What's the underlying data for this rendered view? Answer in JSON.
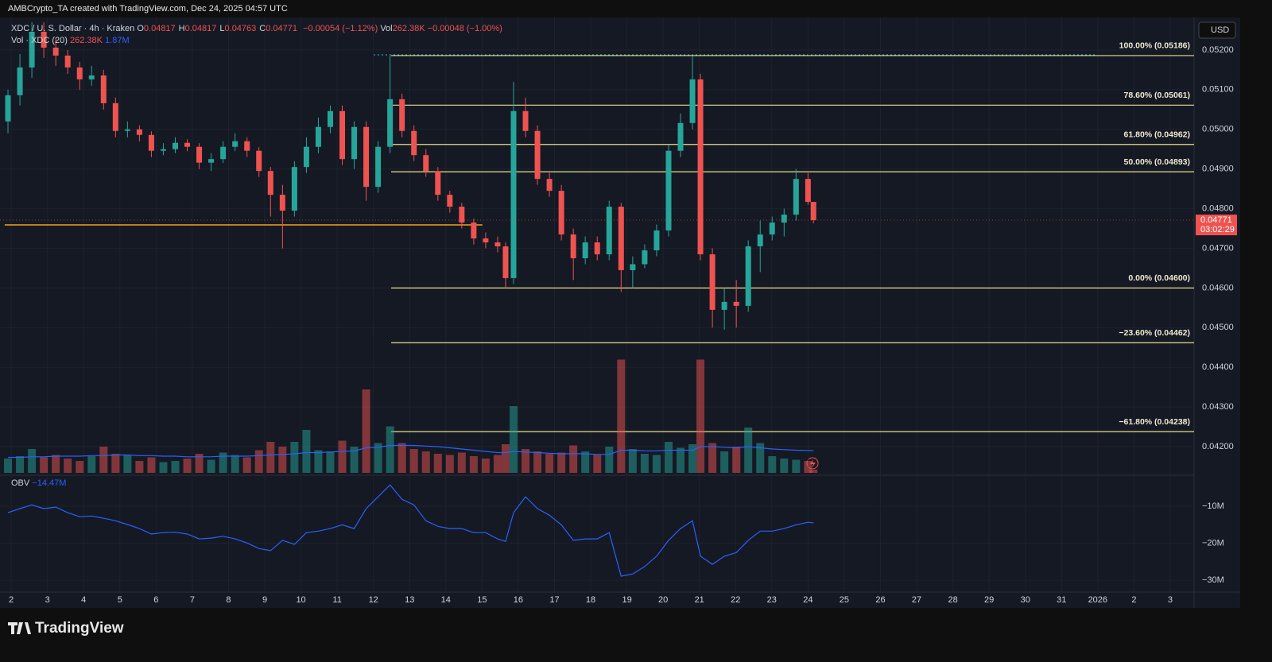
{
  "header": {
    "credit": "AMBCrypto_TA created with TradingView.com, Dec 24, 2025 04:57 UTC",
    "symbol": "XDC / U. S. Dollar · 4h · Kraken",
    "ohlc": [
      {
        "key": "O",
        "value": "0.04817"
      },
      {
        "key": "H",
        "value": "0.04817"
      },
      {
        "key": "L",
        "value": "0.04763"
      },
      {
        "key": "C",
        "value": "0.04771"
      }
    ],
    "change": "−0.00054 (−1.12%)",
    "vol_key": "Vol",
    "vol_value": "262.38K",
    "vol_change": "−0.00048 (−1.00%)",
    "vol_ma_name": "Vol · XDC (20)",
    "vol_ma_value1": "262.38K",
    "vol_ma_value2": "1.87M",
    "obv_name": "OBV",
    "obv_value": "−14.47M",
    "currency": "USD",
    "price_tag": "0.04771",
    "countdown": "03:02:29",
    "logo": "TradingView"
  },
  "chart_data": {
    "type": "candlestick",
    "colors": {
      "up": "#26a69a",
      "down": "#ef5350"
    },
    "grid": true,
    "xlim": [
      1.69,
      34.66
    ],
    "xticks": [
      2,
      3,
      4,
      5,
      6,
      7,
      8,
      9,
      10,
      11,
      12,
      13,
      14,
      15,
      16,
      17,
      18,
      19,
      20,
      21,
      22,
      23,
      24,
      25,
      26,
      27,
      28,
      29,
      30,
      31,
      {
        "value": 32,
        "label": "2026"
      },
      {
        "value": 33,
        "label": "2"
      },
      {
        "value": 34,
        "label": "3"
      }
    ],
    "ylim": [
      0.04134,
      0.05282
    ],
    "yticks": [
      {
        "value": 0.052,
        "label": "0.05200"
      },
      {
        "value": 0.051,
        "label": "0.05100"
      },
      {
        "value": 0.05,
        "label": "0.05000"
      },
      {
        "value": 0.049,
        "label": "0.04900"
      },
      {
        "value": 0.048,
        "label": "0.04800"
      },
      {
        "value": 0.047,
        "label": "0.04700"
      },
      {
        "value": 0.046,
        "label": "0.04600"
      },
      {
        "value": 0.045,
        "label": "0.04500"
      },
      {
        "value": 0.044,
        "label": "0.04400"
      },
      {
        "value": 0.043,
        "label": "0.04300"
      },
      {
        "value": 0.042,
        "label": "0.04200"
      }
    ],
    "x": [
      1.91,
      2.24,
      2.57,
      2.9,
      3.23,
      3.56,
      3.89,
      4.22,
      4.55,
      4.88,
      5.21,
      5.54,
      5.87,
      6.2,
      6.53,
      6.86,
      7.19,
      7.52,
      7.85,
      8.18,
      8.51,
      8.84,
      9.16,
      9.49,
      9.82,
      10.15,
      10.48,
      10.81,
      11.14,
      11.47,
      11.8,
      12.13,
      12.46,
      12.79,
      13.12,
      13.45,
      13.78,
      14.11,
      14.44,
      14.77,
      15.1,
      15.43,
      15.65,
      15.87,
      16.2,
      16.53,
      16.86,
      17.19,
      17.52,
      17.85,
      18.18,
      18.51,
      18.84,
      19.16,
      19.49,
      19.82,
      20.15,
      20.48,
      20.81,
      21.03,
      21.36,
      21.69,
      22.02,
      22.35,
      22.68,
      23.01,
      23.34,
      23.67,
      24.0,
      24.15
    ],
    "candles": [
      [
        0.0502,
        0.051,
        0.0499,
        0.05086
      ],
      [
        0.05086,
        0.0519,
        0.0506,
        0.05156
      ],
      [
        0.05156,
        0.0527,
        0.0513,
        0.05246
      ],
      [
        0.05246,
        0.0527,
        0.0518,
        0.05206
      ],
      [
        0.05206,
        0.0523,
        0.0516,
        0.05186
      ],
      [
        0.05186,
        0.052,
        0.0514,
        0.05156
      ],
      [
        0.05156,
        0.0517,
        0.051,
        0.05126
      ],
      [
        0.05126,
        0.0516,
        0.0511,
        0.05136
      ],
      [
        0.05136,
        0.0515,
        0.0505,
        0.05066
      ],
      [
        0.05066,
        0.0508,
        0.0498,
        0.04996
      ],
      [
        0.04996,
        0.0502,
        0.0498,
        0.05
      ],
      [
        0.05,
        0.0501,
        0.0497,
        0.04986
      ],
      [
        0.04986,
        0.04995,
        0.0493,
        0.04946
      ],
      [
        0.04946,
        0.04965,
        0.04935,
        0.0495
      ],
      [
        0.0495,
        0.0498,
        0.0494,
        0.04966
      ],
      [
        0.04966,
        0.04975,
        0.04945,
        0.04956
      ],
      [
        0.04956,
        0.04965,
        0.049,
        0.04916
      ],
      [
        0.04916,
        0.0494,
        0.04895,
        0.04925
      ],
      [
        0.04925,
        0.0497,
        0.04915,
        0.04956
      ],
      [
        0.04956,
        0.0499,
        0.04945,
        0.0497
      ],
      [
        0.0497,
        0.0498,
        0.0493,
        0.04946
      ],
      [
        0.04946,
        0.04955,
        0.0488,
        0.04895
      ],
      [
        0.04895,
        0.04905,
        0.0478,
        0.04835
      ],
      [
        0.04835,
        0.0486,
        0.047,
        0.04795
      ],
      [
        0.04795,
        0.0492,
        0.0478,
        0.04905
      ],
      [
        0.04905,
        0.0498,
        0.0489,
        0.04956
      ],
      [
        0.04956,
        0.0503,
        0.0494,
        0.05006
      ],
      [
        0.05006,
        0.0506,
        0.0499,
        0.05046
      ],
      [
        0.05046,
        0.0506,
        0.0491,
        0.04925
      ],
      [
        0.04925,
        0.0502,
        0.049,
        0.05006
      ],
      [
        0.05006,
        0.0502,
        0.0482,
        0.04855
      ],
      [
        0.04855,
        0.0497,
        0.0484,
        0.04956
      ],
      [
        0.04956,
        0.05186,
        0.0494,
        0.05076
      ],
      [
        0.05076,
        0.0509,
        0.0498,
        0.04996
      ],
      [
        0.04996,
        0.0501,
        0.0492,
        0.04935
      ],
      [
        0.04935,
        0.0495,
        0.0488,
        0.04895
      ],
      [
        0.04895,
        0.04905,
        0.0482,
        0.04835
      ],
      [
        0.04835,
        0.04845,
        0.0479,
        0.04805
      ],
      [
        0.04805,
        0.04815,
        0.0475,
        0.04765
      ],
      [
        0.04765,
        0.04775,
        0.0471,
        0.04725
      ],
      [
        0.04725,
        0.0474,
        0.047,
        0.04715
      ],
      [
        0.04715,
        0.0473,
        0.0469,
        0.04705
      ],
      [
        0.04705,
        0.04715,
        0.046,
        0.04625
      ],
      [
        0.04625,
        0.0512,
        0.0461,
        0.05046
      ],
      [
        0.05046,
        0.0508,
        0.0498,
        0.04996
      ],
      [
        0.04996,
        0.0501,
        0.0486,
        0.04875
      ],
      [
        0.04875,
        0.0489,
        0.0483,
        0.04845
      ],
      [
        0.04845,
        0.0486,
        0.0472,
        0.04735
      ],
      [
        0.04735,
        0.0475,
        0.0462,
        0.04675
      ],
      [
        0.04675,
        0.0473,
        0.0466,
        0.04715
      ],
      [
        0.04715,
        0.0473,
        0.0467,
        0.04685
      ],
      [
        0.04685,
        0.0482,
        0.0467,
        0.04805
      ],
      [
        0.04805,
        0.04815,
        0.0459,
        0.04645
      ],
      [
        0.04645,
        0.0468,
        0.046,
        0.0466
      ],
      [
        0.0466,
        0.0471,
        0.0465,
        0.04695
      ],
      [
        0.04695,
        0.0476,
        0.0468,
        0.04745
      ],
      [
        0.04745,
        0.0496,
        0.0473,
        0.04946
      ],
      [
        0.04946,
        0.0504,
        0.0493,
        0.05016
      ],
      [
        0.05016,
        0.05186,
        0.05,
        0.05126
      ],
      [
        0.05126,
        0.0514,
        0.0467,
        0.04685
      ],
      [
        0.04685,
        0.047,
        0.045,
        0.04545
      ],
      [
        0.04545,
        0.046,
        0.04495,
        0.04565
      ],
      [
        0.04565,
        0.0462,
        0.045,
        0.04555
      ],
      [
        0.04555,
        0.0472,
        0.0454,
        0.04705
      ],
      [
        0.04705,
        0.0477,
        0.0464,
        0.04735
      ],
      [
        0.04735,
        0.0478,
        0.0472,
        0.04765
      ],
      [
        0.04765,
        0.048,
        0.0473,
        0.04785
      ],
      [
        0.04785,
        0.049,
        0.0477,
        0.04875
      ],
      [
        0.04875,
        0.0489,
        0.0481,
        0.04817
      ],
      [
        0.04817,
        0.04817,
        0.04763,
        0.04771
      ]
    ],
    "fib_levels": [
      {
        "label": "100.00% (0.05186)",
        "value": 0.05186
      },
      {
        "label": "78.60% (0.05061)",
        "value": 0.05061
      },
      {
        "label": "61.80% (0.04962)",
        "value": 0.04962
      },
      {
        "label": "50.00% (0.04893)",
        "value": 0.04893
      },
      {
        "label": "0.00% (0.04600)",
        "value": 0.046
      },
      {
        "label": "−23.60% (0.04462)",
        "value": 0.04462
      },
      {
        "label": "−61.80% (0.04238)",
        "value": 0.04238
      }
    ],
    "fib_start": 12.49,
    "fib_color": "#e8e08c",
    "level_line": {
      "value": 0.04759,
      "x": [
        1.82,
        15.01
      ],
      "color": "#f7a21b"
    },
    "volume_lim": [
      0,
      10
    ],
    "volume": [
      1.2,
      1.4,
      2.0,
      1.3,
      1.5,
      1.2,
      1.0,
      1.4,
      2.2,
      1.6,
      1.5,
      1.0,
      1.3,
      0.9,
      1.0,
      1.2,
      1.6,
      1.1,
      1.7,
      1.5,
      1.3,
      1.9,
      2.6,
      2.2,
      2.6,
      3.6,
      1.9,
      1.8,
      2.7,
      2.2,
      7.0,
      2.5,
      3.9,
      2.5,
      2.0,
      1.8,
      1.6,
      1.5,
      1.7,
      1.4,
      1.2,
      1.5,
      2.4,
      5.6,
      2.0,
      1.8,
      1.6,
      1.7,
      2.3,
      1.8,
      1.5,
      2.2,
      9.5,
      2.0,
      1.6,
      1.5,
      2.6,
      2.1,
      2.4,
      9.5,
      2.5,
      1.8,
      2.2,
      3.8,
      2.5,
      1.4,
      1.2,
      1.1,
      1.0,
      0.26238
    ],
    "volume_ma": [
      1.3,
      1.3,
      1.35,
      1.35,
      1.4,
      1.4,
      1.4,
      1.45,
      1.45,
      1.5,
      1.5,
      1.45,
      1.45,
      1.4,
      1.4,
      1.35,
      1.35,
      1.35,
      1.4,
      1.4,
      1.4,
      1.45,
      1.5,
      1.55,
      1.6,
      1.7,
      1.7,
      1.75,
      1.8,
      1.85,
      2.1,
      2.15,
      2.3,
      2.3,
      2.3,
      2.25,
      2.2,
      2.1,
      2.0,
      1.9,
      1.8,
      1.7,
      1.7,
      1.8,
      1.75,
      1.7,
      1.65,
      1.6,
      1.6,
      1.6,
      1.55,
      1.55,
      1.9,
      1.9,
      1.85,
      1.85,
      1.9,
      1.9,
      1.9,
      2.2,
      2.2,
      2.15,
      2.1,
      2.2,
      2.1,
      2.0,
      1.95,
      1.9,
      1.88,
      1.87
    ],
    "obv_ylim": [
      -33.2,
      -2.0
    ],
    "obv_yticks": [
      {
        "value": -10,
        "label": "−10M"
      },
      {
        "value": -20,
        "label": "−20M"
      },
      {
        "value": -30,
        "label": "−30M"
      }
    ],
    "obv": [
      -11.7,
      -10.6,
      -9.6,
      -10.6,
      -10.2,
      -11.7,
      -12.8,
      -12.6,
      -13.2,
      -13.9,
      -14.9,
      -16.0,
      -17.5,
      -17.1,
      -17.0,
      -17.5,
      -18.8,
      -18.6,
      -18.1,
      -18.8,
      -19.9,
      -21.4,
      -22.0,
      -19.2,
      -20.3,
      -17.1,
      -16.7,
      -16.0,
      -15.0,
      -16.0,
      -10.6,
      -7.4,
      -4.2,
      -8.1,
      -9.6,
      -13.9,
      -15.4,
      -16.0,
      -16.0,
      -17.1,
      -17.1,
      -18.8,
      -19.5,
      -11.7,
      -7.4,
      -10.6,
      -12.4,
      -15.0,
      -19.2,
      -18.8,
      -18.8,
      -17.1,
      -28.9,
      -28.3,
      -26.3,
      -23.5,
      -19.2,
      -16.0,
      -13.9,
      -23.5,
      -25.7,
      -23.5,
      -22.5,
      -19.2,
      -16.7,
      -16.7,
      -16.0,
      -15.0,
      -14.3,
      -14.47
    ],
    "obv_color": "#2962ff",
    "volume_ma_color": "#2962ff"
  }
}
